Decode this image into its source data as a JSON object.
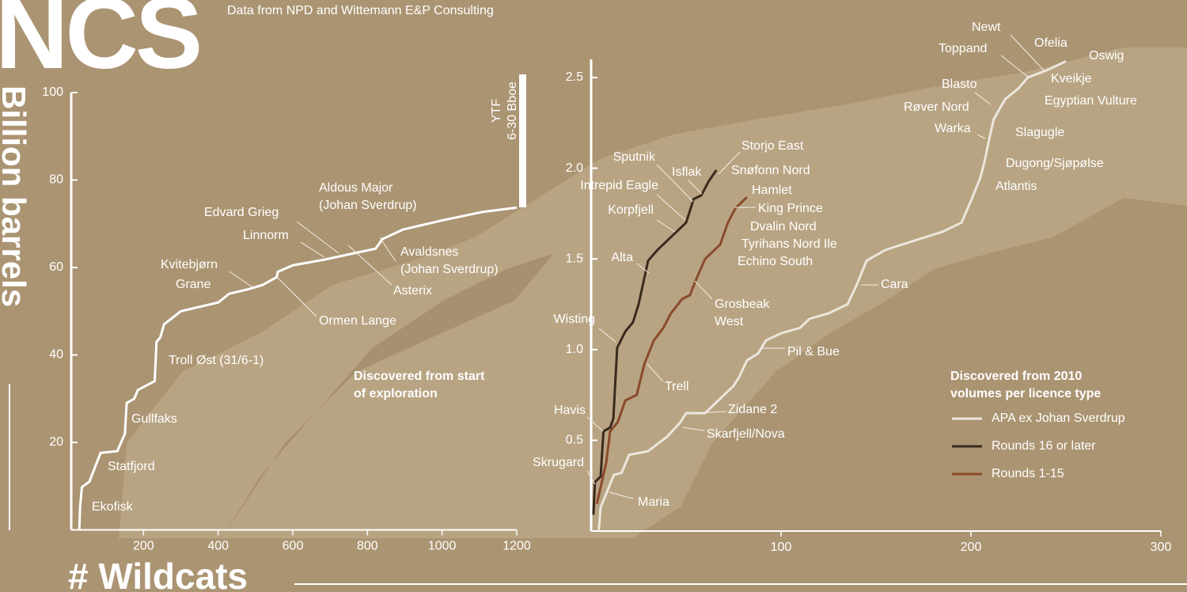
{
  "title": "NCS",
  "subtitle": "Data from NPD and Wittemann E&P Consulting",
  "y_label": "Billion barrels",
  "x_label": "# Wildcats",
  "chart_data": [
    {
      "type": "line",
      "note": [
        "Discovered from start",
        "of exploration"
      ],
      "ytf": [
        "YTF",
        "6-30 Bboe"
      ],
      "color": "#ffffff",
      "x": [
        28,
        30,
        35,
        55,
        85,
        130,
        140,
        150,
        155,
        175,
        185,
        230,
        235,
        245,
        255,
        270,
        300,
        350,
        400,
        430,
        480,
        519,
        557,
        560,
        600,
        684,
        750,
        822,
        840,
        896,
        1002,
        1108,
        1200
      ],
      "values": [
        0,
        5.3,
        9.8,
        11,
        17.6,
        18,
        20,
        22,
        29,
        30,
        32,
        34,
        43,
        44,
        47,
        48,
        50,
        51,
        52,
        54,
        55,
        56,
        57.8,
        59,
        60.5,
        61.8,
        63,
        64.3,
        66.5,
        68.7,
        70.8,
        72.7,
        73.7
      ],
      "xlim": [
        0,
        1200
      ],
      "xticks": [
        200,
        400,
        600,
        800,
        1000,
        1200
      ],
      "ylim": [
        0,
        100
      ],
      "yticks": [
        20,
        40,
        60,
        80,
        100
      ],
      "annotations": [
        [
          "Ekofisk"
        ],
        [
          "Statfjord"
        ],
        [
          "Gullfaks"
        ],
        [
          "Troll Øst (31/6-1)"
        ],
        [
          "Grane"
        ],
        [
          "Kvitebjørn"
        ],
        [
          "Ormen Lange"
        ],
        [
          "Linnorm"
        ],
        [
          "Edvard Grieg"
        ],
        [
          "Asterix"
        ],
        [
          "Aldous Major",
          "(Johan Sverdrup)"
        ],
        [
          "Avaldsnes",
          "(Johan Sverdrup)"
        ]
      ]
    },
    {
      "type": "line",
      "note": [
        "Discovered from 2010",
        "volumes per licence type"
      ],
      "xlim": [
        0,
        300
      ],
      "xticks": [
        100,
        200,
        300
      ],
      "ylim": [
        0,
        2.6
      ],
      "yticks": [
        0.5,
        {
          "value": 1,
          "label": "1.0"
        },
        1.5,
        {
          "value": 2,
          "label": "2.0"
        },
        2.5
      ],
      "series": [
        {
          "name": "APA ex Johan Sverdrup",
          "color": "#ece6dc",
          "x": [
            4,
            5,
            12,
            16,
            20,
            30,
            40,
            47,
            50,
            60,
            65,
            75,
            78,
            82,
            88,
            92,
            100,
            110,
            115,
            125,
            135,
            140,
            145,
            155,
            170,
            185,
            195,
            200,
            205,
            207,
            210,
            212,
            218,
            225,
            230,
            240,
            250
          ],
          "values": [
            0,
            0.13,
            0.31,
            0.32,
            0.42,
            0.44,
            0.52,
            0.6,
            0.65,
            0.65,
            0.7,
            0.8,
            0.85,
            0.94,
            0.98,
            1.05,
            1.09,
            1.12,
            1.17,
            1.2,
            1.25,
            1.36,
            1.49,
            1.55,
            1.6,
            1.65,
            1.7,
            1.82,
            1.95,
            2.03,
            2.18,
            2.27,
            2.38,
            2.44,
            2.5,
            2.54,
            2.59
          ]
        },
        {
          "name": "Rounds 16 or later",
          "color": "#3a2a1e",
          "x": [
            1.2,
            2,
            5,
            6.5,
            10,
            11.7,
            13.7,
            18,
            22,
            25,
            30,
            35,
            40,
            45,
            50,
            54,
            58,
            62,
            66
          ],
          "values": [
            0.09,
            0.27,
            0.3,
            0.55,
            0.57,
            0.62,
            1.01,
            1.1,
            1.15,
            1.25,
            1.49,
            1.55,
            1.6,
            1.65,
            1.7,
            1.83,
            1.85,
            1.93,
            1.99
          ]
        },
        {
          "name": "Rounds 1-15",
          "color": "#8b4a2a",
          "x": [
            3,
            8,
            10,
            14,
            18,
            24,
            28,
            33,
            38,
            42,
            48,
            52,
            55,
            60,
            68,
            72,
            76,
            82
          ],
          "values": [
            0.15,
            0.38,
            0.55,
            0.6,
            0.72,
            0.75,
            0.92,
            1.05,
            1.12,
            1.2,
            1.28,
            1.3,
            1.38,
            1.5,
            1.58,
            1.7,
            1.78,
            1.84
          ]
        }
      ],
      "annotations": [
        [
          "Skrugard"
        ],
        [
          "Havis"
        ],
        [
          "Wisting"
        ],
        [
          "Alta"
        ],
        [
          "Korpfjell"
        ],
        [
          "Intrepid Eagle"
        ],
        [
          "Sputnik"
        ],
        [
          "Isflak"
        ],
        [
          "Storjo East"
        ],
        [
          "Snøfonn Nord"
        ],
        [
          "Hamlet"
        ],
        [
          "King Prince"
        ],
        [
          "Dvalin Nord"
        ],
        [
          "Tyrihans Nord Ile"
        ],
        [
          "Echino South"
        ],
        [
          "Grosbeak",
          "West"
        ],
        [
          "Trell"
        ],
        [
          "Maria"
        ],
        [
          "Zidane 2"
        ],
        [
          "Skarfjell/Nova"
        ],
        [
          "Pil & Bue"
        ],
        [
          "Cara"
        ],
        [
          "Atlantis"
        ],
        [
          "Dugong/Sjøpølse"
        ],
        [
          "Slagugle"
        ],
        [
          "Warka"
        ],
        [
          "Røver Nord"
        ],
        [
          "Blasto"
        ],
        [
          "Egyptian Vulture"
        ],
        [
          "Kveikje"
        ],
        [
          "Toppand"
        ],
        [
          "Newt"
        ],
        [
          "Ofelia"
        ],
        [
          "Oswig"
        ]
      ]
    }
  ]
}
